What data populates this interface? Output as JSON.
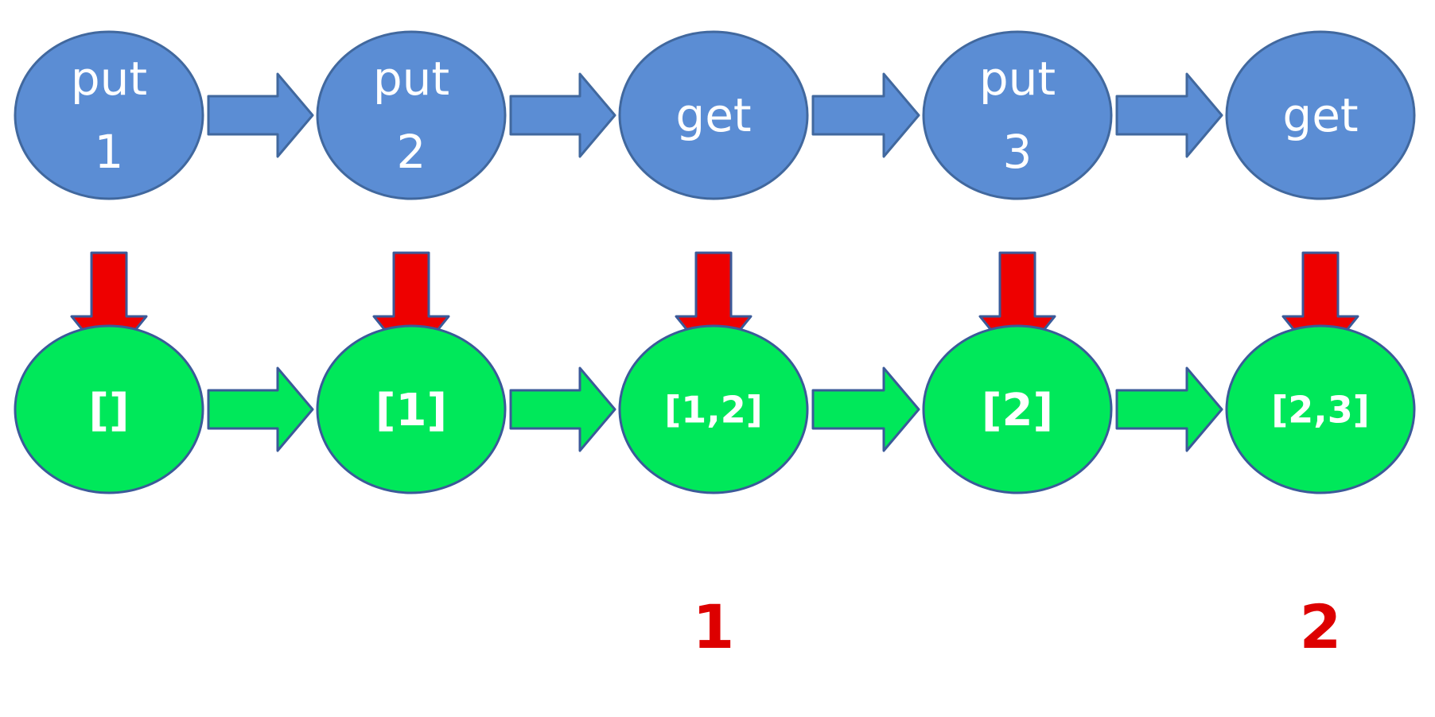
{
  "colors": {
    "op_fill": "#5B8DD4",
    "op_stroke": "#41689E",
    "state_fill": "#00E85A",
    "state_stroke": "#3B5A99",
    "down_arrow_fill": "#EE0000",
    "down_arrow_stroke": "#3B5A99",
    "result_text": "#DD0000"
  },
  "steps": [
    {
      "op": [
        "put",
        "1"
      ],
      "state": "[]",
      "result": ""
    },
    {
      "op": [
        "put",
        "2"
      ],
      "state": "[1]",
      "result": ""
    },
    {
      "op": [
        "get"
      ],
      "state": "[1,2]",
      "result": "1"
    },
    {
      "op": [
        "put",
        "3"
      ],
      "state": "[2]",
      "result": ""
    },
    {
      "op": [
        "get"
      ],
      "state": "[2,3]",
      "result": "2"
    }
  ]
}
